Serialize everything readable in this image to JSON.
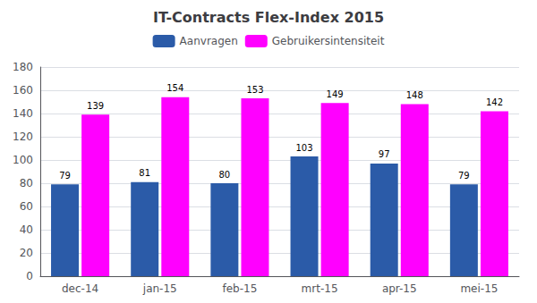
{
  "chart_data": {
    "type": "bar",
    "title": "IT-Contracts Flex-Index 2015",
    "categories": [
      "dec-14",
      "jan-15",
      "feb-15",
      "mrt-15",
      "apr-15",
      "mei-15"
    ],
    "series": [
      {
        "name": "Aanvragen",
        "color": "#2B5BA8",
        "values": [
          79,
          81,
          80,
          103,
          97,
          79
        ]
      },
      {
        "name": "Gebruikersintensiteit",
        "color": "#FF00FF",
        "values": [
          139,
          154,
          153,
          149,
          148,
          142
        ]
      }
    ],
    "ylim": [
      0,
      180
    ],
    "yticks": [
      0,
      20,
      40,
      60,
      80,
      100,
      120,
      140,
      160,
      180
    ],
    "grid": true,
    "legend": "top",
    "data_labels": true
  }
}
